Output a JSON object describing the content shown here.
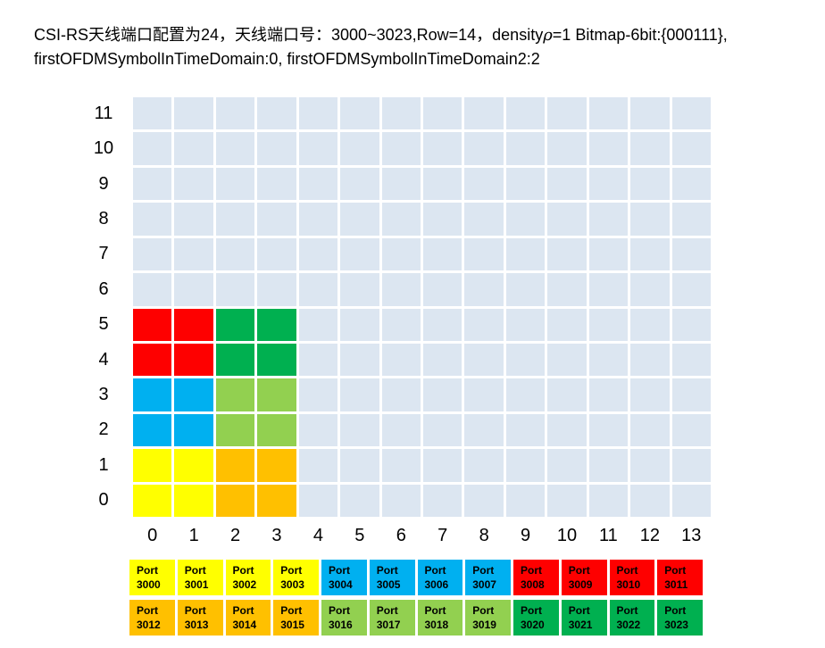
{
  "title": {
    "line1_pre": "CSI-RS天线端口配置为24，天线端口号：3000~3023,Row=14，density",
    "rho": "ρ",
    "line1_post": "=1 Bitmap-6bit:{000111},",
    "line2": "firstOFDMSymbolInTimeDomain:0, firstOFDMSymbolInTimeDomain2:2"
  },
  "colors": {
    "grid_cell": "#dce6f1",
    "red": "#fe0000",
    "green": "#00b050",
    "blue": "#00b0f0",
    "light_green": "#92d050",
    "yellow": "#ffff00",
    "orange": "#ffc000"
  },
  "grid": {
    "x_labels": [
      "0",
      "1",
      "2",
      "3",
      "4",
      "5",
      "6",
      "7",
      "8",
      "9",
      "10",
      "11",
      "12",
      "13"
    ],
    "y_labels": [
      "11",
      "10",
      "9",
      "8",
      "7",
      "6",
      "5",
      "4",
      "3",
      "2",
      "1",
      "0"
    ],
    "regions": [
      {
        "color_key": "yellow",
        "ports": "3000-3003",
        "symbols": [
          0,
          1
        ],
        "subcarriers": [
          0,
          1
        ]
      },
      {
        "color_key": "blue",
        "ports": "3004-3007",
        "symbols": [
          0,
          1
        ],
        "subcarriers": [
          2,
          3
        ]
      },
      {
        "color_key": "red",
        "ports": "3008-3011",
        "symbols": [
          0,
          1
        ],
        "subcarriers": [
          4,
          5
        ]
      },
      {
        "color_key": "orange",
        "ports": "3012-3015",
        "symbols": [
          2,
          3
        ],
        "subcarriers": [
          0,
          1
        ]
      },
      {
        "color_key": "light_green",
        "ports": "3016-3019",
        "symbols": [
          2,
          3
        ],
        "subcarriers": [
          2,
          3
        ]
      },
      {
        "color_key": "green",
        "ports": "3020-3023",
        "symbols": [
          2,
          3
        ],
        "subcarriers": [
          4,
          5
        ]
      }
    ]
  },
  "legend": {
    "rows": [
      {
        "cells": [
          {
            "label": "Port",
            "port": "3000",
            "color_key": "yellow"
          },
          {
            "label": "Port",
            "port": "3001",
            "color_key": "yellow"
          },
          {
            "label": "Port",
            "port": "3002",
            "color_key": "yellow"
          },
          {
            "label": "Port",
            "port": "3003",
            "color_key": "yellow"
          },
          {
            "label": "Port",
            "port": "3004",
            "color_key": "blue"
          },
          {
            "label": "Port",
            "port": "3005",
            "color_key": "blue"
          },
          {
            "label": "Port",
            "port": "3006",
            "color_key": "blue"
          },
          {
            "label": "Port",
            "port": "3007",
            "color_key": "blue"
          },
          {
            "label": "Port",
            "port": "3008",
            "color_key": "red"
          },
          {
            "label": "Port",
            "port": "3009",
            "color_key": "red"
          },
          {
            "label": "Port",
            "port": "3010",
            "color_key": "red"
          },
          {
            "label": "Port",
            "port": "3011",
            "color_key": "red"
          }
        ]
      },
      {
        "cells": [
          {
            "label": "Port",
            "port": "3012",
            "color_key": "orange"
          },
          {
            "label": "Port",
            "port": "3013",
            "color_key": "orange"
          },
          {
            "label": "Port",
            "port": "3014",
            "color_key": "orange"
          },
          {
            "label": "Port",
            "port": "3015",
            "color_key": "orange"
          },
          {
            "label": "Port",
            "port": "3016",
            "color_key": "light_green"
          },
          {
            "label": "Port",
            "port": "3017",
            "color_key": "light_green"
          },
          {
            "label": "Port",
            "port": "3018",
            "color_key": "light_green"
          },
          {
            "label": "Port",
            "port": "3019",
            "color_key": "light_green"
          },
          {
            "label": "Port",
            "port": "3020",
            "color_key": "green"
          },
          {
            "label": "Port",
            "port": "3021",
            "color_key": "green"
          },
          {
            "label": "Port",
            "port": "3022",
            "color_key": "green"
          },
          {
            "label": "Port",
            "port": "3023",
            "color_key": "green"
          }
        ]
      }
    ]
  }
}
